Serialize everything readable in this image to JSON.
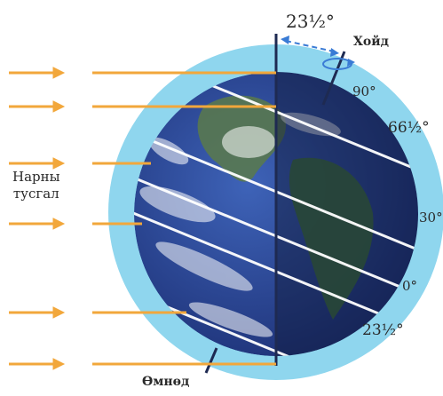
{
  "labels": {
    "axial_tilt": "23½°",
    "north": "Хойд",
    "south": "Өмнөд",
    "sun_rays_line1": "Нарны",
    "sun_rays_line2": "туcгал"
  },
  "latitudes": {
    "lat_90": "90°",
    "lat_66": "66½°",
    "lat_30": "30°",
    "lat_0": "0°",
    "lat_23": "23½°"
  },
  "colors": {
    "atmosphere": "#8fd6ee",
    "arrow": "#f2a73b",
    "ocean": "#243f8c",
    "night_ocean": "#1b2a55",
    "land": "#3e6f3a",
    "axis": "#1e2a52",
    "rotation_marker": "#3a7bd5"
  }
}
